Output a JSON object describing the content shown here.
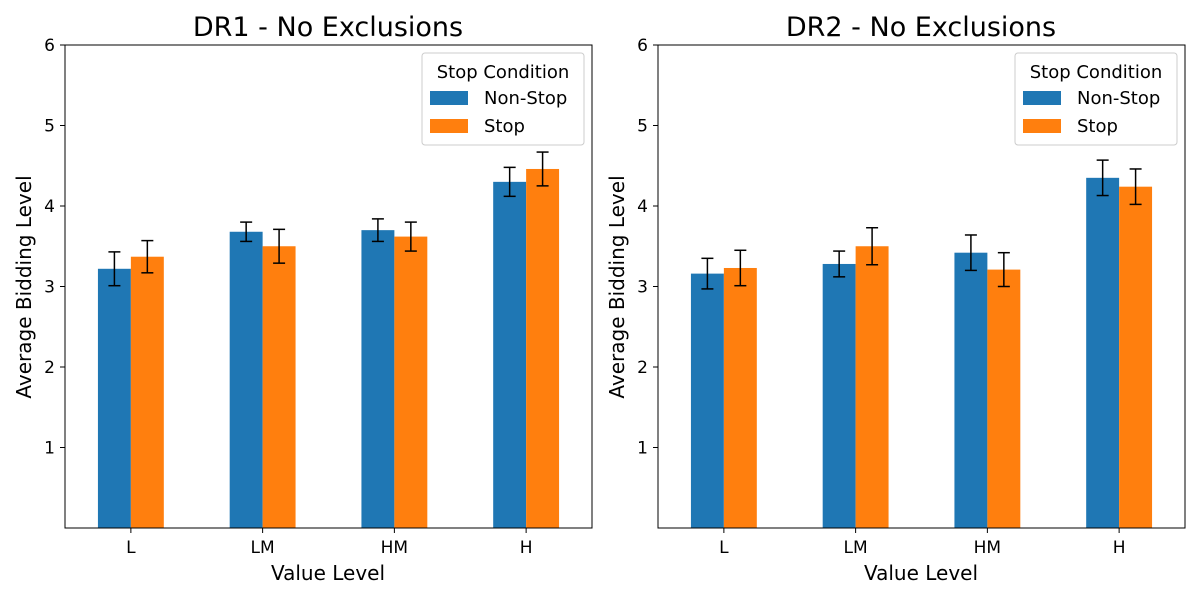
{
  "chart_data": [
    {
      "type": "bar",
      "title": "DR1 - No Exclusions",
      "xlabel": "Value Level",
      "ylabel": "Average Bidding Level",
      "categories": [
        "L",
        "LM",
        "HM",
        "H"
      ],
      "ylim": [
        0,
        6
      ],
      "yticks": [
        1,
        2,
        3,
        4,
        5,
        6
      ],
      "grid": false,
      "legend": {
        "title": "Stop Condition",
        "position": "top-right"
      },
      "series": [
        {
          "name": "Non-Stop",
          "color": "#1f77b4",
          "values": [
            3.22,
            3.68,
            3.7,
            4.3
          ],
          "errors": [
            0.21,
            0.12,
            0.14,
            0.18
          ]
        },
        {
          "name": "Stop",
          "color": "#ff7f0e",
          "values": [
            3.37,
            3.5,
            3.62,
            4.46
          ],
          "errors": [
            0.2,
            0.21,
            0.18,
            0.21
          ]
        }
      ]
    },
    {
      "type": "bar",
      "title": "DR2 - No Exclusions",
      "xlabel": "Value Level",
      "ylabel": "Average Bidding Level",
      "categories": [
        "L",
        "LM",
        "HM",
        "H"
      ],
      "ylim": [
        0,
        6
      ],
      "yticks": [
        1,
        2,
        3,
        4,
        5,
        6
      ],
      "grid": false,
      "legend": {
        "title": "Stop Condition",
        "position": "top-right"
      },
      "series": [
        {
          "name": "Non-Stop",
          "color": "#1f77b4",
          "values": [
            3.16,
            3.28,
            3.42,
            4.35
          ],
          "errors": [
            0.19,
            0.16,
            0.22,
            0.22
          ]
        },
        {
          "name": "Stop",
          "color": "#ff7f0e",
          "values": [
            3.23,
            3.5,
            3.21,
            4.24
          ],
          "errors": [
            0.22,
            0.23,
            0.21,
            0.22
          ]
        }
      ]
    }
  ]
}
